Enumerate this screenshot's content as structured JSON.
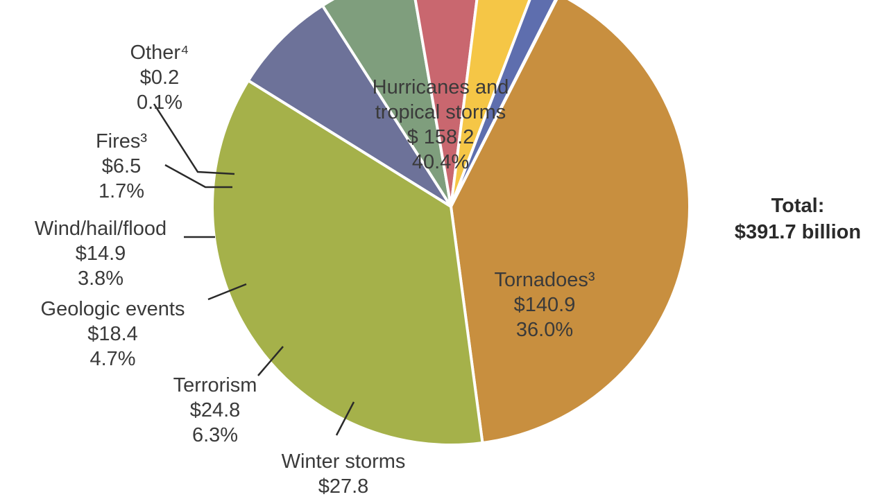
{
  "chart_data": {
    "type": "pie",
    "unit": "$",
    "slices": [
      {
        "name": "Hurricanes and tropical storms",
        "value": 158.2,
        "percent": 40.4,
        "value_label": "$ 158.2",
        "percent_label": "40.4%",
        "color": "#c88f3f"
      },
      {
        "name": "Tornadoes³",
        "value": 140.9,
        "percent": 36.0,
        "value_label": "$140.9",
        "percent_label": "36.0%",
        "color": "#a5b14a"
      },
      {
        "name": "Winter storms",
        "value": 27.8,
        "percent": 7.1,
        "value_label": "$27.8",
        "percent_label": "",
        "color": "#6d7299"
      },
      {
        "name": "Terrorism",
        "value": 24.8,
        "percent": 6.3,
        "value_label": "$24.8",
        "percent_label": "6.3%",
        "color": "#7f9e7d"
      },
      {
        "name": "Geologic events",
        "value": 18.4,
        "percent": 4.7,
        "value_label": "$18.4",
        "percent_label": "4.7%",
        "color": "#c9676f"
      },
      {
        "name": "Wind/hail/flood",
        "value": 14.9,
        "percent": 3.8,
        "value_label": "$14.9",
        "percent_label": "3.8%",
        "color": "#f5c646"
      },
      {
        "name": "Fires³",
        "value": 6.5,
        "percent": 1.7,
        "value_label": "$6.5",
        "percent_label": "1.7%",
        "color": "#5e6eae"
      },
      {
        "name": "Other⁴",
        "value": 0.2,
        "percent": 0.1,
        "value_label": "$0.2",
        "percent_label": "0.1%",
        "color": "#a3b5d9"
      }
    ],
    "total": {
      "title": "Total:",
      "value": "$391.7 billion"
    }
  }
}
